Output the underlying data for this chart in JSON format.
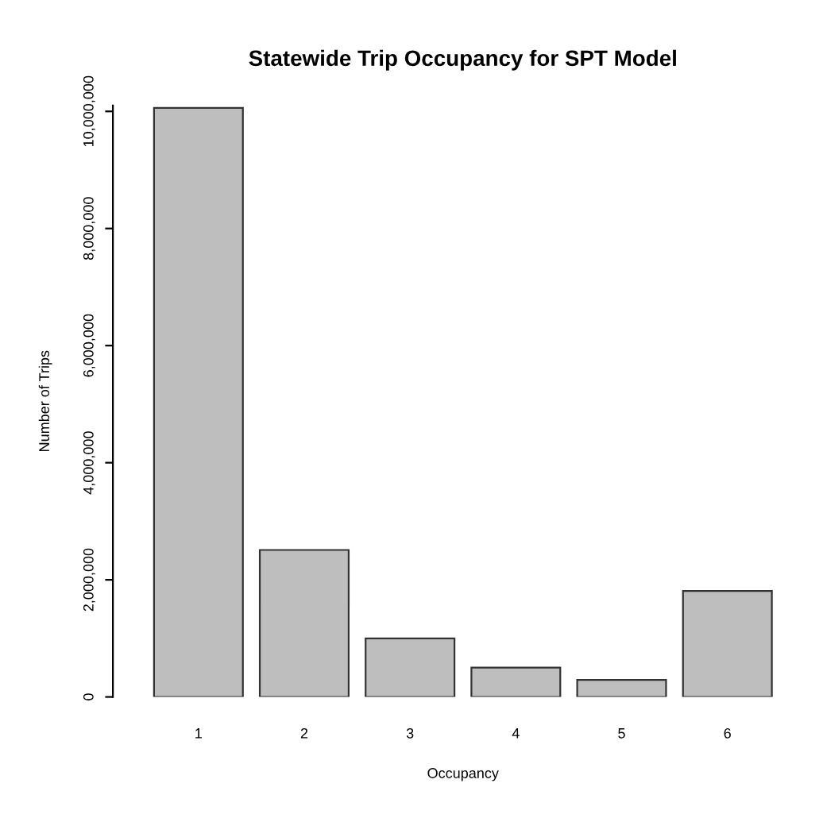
{
  "chart_data": {
    "type": "bar",
    "title": "Statewide Trip Occupancy for SPT Model",
    "xlabel": "Occupancy",
    "ylabel": "Number of Trips",
    "categories": [
      "1",
      "2",
      "3",
      "4",
      "5",
      "6"
    ],
    "values": [
      10060000,
      2510000,
      1000000,
      500000,
      290000,
      1810000
    ],
    "color": "#bebebe",
    "ylim": [
      0,
      10100000
    ],
    "yticks": [
      {
        "value": 0,
        "label": "0"
      },
      {
        "value": 2000000,
        "label": "2,000,000"
      },
      {
        "value": 4000000,
        "label": "4,000,000"
      },
      {
        "value": 6000000,
        "label": "6,000,000"
      },
      {
        "value": 8000000,
        "label": "8,000,000"
      },
      {
        "value": 10000000,
        "label": "10,000,000"
      }
    ],
    "grid": false
  }
}
